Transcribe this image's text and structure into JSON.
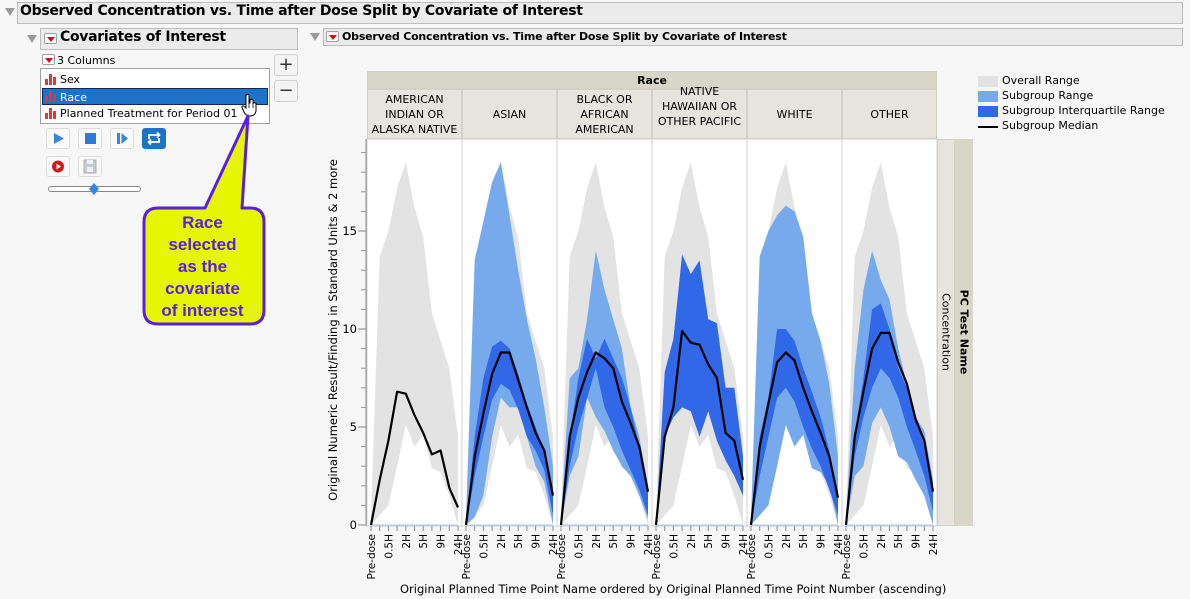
{
  "window": {
    "title": "Observed Concentration vs. Time after Dose Split by Covariate of Interest"
  },
  "covariates_panel": {
    "title": "Covariates of Interest",
    "columns_label": "3 Columns",
    "items": [
      {
        "label": "Sex",
        "selected": false
      },
      {
        "label": "Race",
        "selected": true
      },
      {
        "label": "Planned Treatment for Period 01",
        "selected": false
      }
    ],
    "add_button": "+",
    "remove_button": "−",
    "controls": [
      "play-icon",
      "stop-icon",
      "step-forward-icon",
      "loop-icon",
      "record-icon",
      "save-icon"
    ],
    "animation_speed": 0.5
  },
  "callout": {
    "text_lines": [
      "Race",
      "selected",
      "as the",
      "covariate",
      "of interest"
    ],
    "fill_color": "#e8f500",
    "border_color": "#5a1ee0"
  },
  "plot_outline": {
    "title": "Observed Concentration vs. Time after Dose Split by Covariate of Interest"
  },
  "chart_data": {
    "type": "area",
    "title": "Observed Concentration vs. Time after Dose Split by Covariate of Interest",
    "group_header": "Race",
    "panels": [
      {
        "label_lines": [
          "AMERICAN",
          "INDIAN OR",
          "ALASKA NATIVE"
        ]
      },
      {
        "label_lines": [
          "ASIAN"
        ]
      },
      {
        "label_lines": [
          "BLACK OR",
          "AFRICAN",
          "AMERICAN"
        ]
      },
      {
        "label_lines": [
          "NATIVE",
          "HAWAIIAN OR",
          "OTHER PACIFIC ..."
        ]
      },
      {
        "label_lines": [
          "WHITE"
        ]
      },
      {
        "label_lines": [
          "OTHER"
        ]
      }
    ],
    "row_strip": {
      "title": "PC Test Name",
      "value": "Concentration"
    },
    "xlabel": "Original Planned Time Point Name ordered by Original Planned Time Point Number (ascending)",
    "ylabel": "Original Numeric Result/Finding in Standard Units & 2 more",
    "x_ticks_count": 11,
    "x_tick_labels": [
      {
        "index": 0,
        "label": "Pre-dose"
      },
      {
        "index": 2,
        "label": "0.5H"
      },
      {
        "index": 4,
        "label": "2H"
      },
      {
        "index": 6,
        "label": "5H"
      },
      {
        "index": 8,
        "label": "9H"
      },
      {
        "index": 10,
        "label": "24H"
      }
    ],
    "y_ticks": [
      0,
      5,
      10,
      15
    ],
    "y_minor_step": 1,
    "ylim": [
      0,
      19.7
    ],
    "legend": {
      "position": "top-right",
      "items": [
        {
          "label": "Overall Range",
          "color": "#e3e3e3",
          "kind": "area"
        },
        {
          "label": "Subgroup Range",
          "color": "#76aaed",
          "kind": "area"
        },
        {
          "label": "Subgroup Interquartile Range",
          "color": "#3068e8",
          "kind": "area"
        },
        {
          "label": "Subgroup Median",
          "color": "#000000",
          "kind": "line"
        }
      ]
    },
    "overall_range": {
      "max": [
        0.5,
        13.7,
        15.0,
        17.2,
        18.5,
        16.2,
        14.7,
        10.8,
        9.4,
        8.0,
        4.5
      ],
      "min": [
        0,
        0.5,
        1.0,
        3.0,
        5.1,
        4.0,
        4.6,
        2.9,
        2.7,
        1.5,
        0
      ]
    },
    "series": [
      {
        "name": "AMERICAN INDIAN OR ALASKA NATIVE",
        "range_max": null,
        "range_min": null,
        "iqr_max": null,
        "iqr_min": null,
        "median": [
          0,
          2.3,
          4.3,
          6.8,
          6.7,
          5.6,
          4.7,
          3.6,
          3.8,
          1.9,
          0.9
        ]
      },
      {
        "name": "ASIAN",
        "range_max": [
          0.3,
          13.5,
          15.5,
          17.5,
          18.5,
          15.8,
          13.0,
          10.5,
          8.5,
          6.0,
          3.0
        ],
        "range_min": [
          0,
          0.4,
          1.5,
          4.5,
          6.5,
          6.0,
          6.0,
          4.5,
          3.0,
          2.2,
          0
        ],
        "iqr_max": [
          0,
          4.5,
          7.5,
          9.1,
          9.4,
          9.0,
          7.7,
          6.2,
          5.0,
          3.8,
          1.6
        ],
        "iqr_min": [
          0,
          2.5,
          4.5,
          6.4,
          7.2,
          6.9,
          5.9,
          4.5,
          3.8,
          2.8,
          0.5
        ],
        "median": [
          0,
          3.5,
          5.7,
          7.7,
          8.8,
          8.8,
          7.4,
          6.0,
          4.7,
          3.8,
          1.5
        ]
      },
      {
        "name": "BLACK OR AFRICAN AMERICAN",
        "range_max": [
          0.3,
          7.5,
          8.0,
          10.5,
          14.0,
          12.0,
          10.5,
          9.0,
          6.0,
          4.5,
          2.0
        ],
        "range_min": [
          0,
          2.5,
          3.5,
          6.5,
          5.5,
          4.8,
          3.8,
          3.0,
          2.5,
          1.5,
          0.3
        ],
        "iqr_max": [
          0,
          4.5,
          7.5,
          9.5,
          8.5,
          9.5,
          8.5,
          7.5,
          6.0,
          4.0,
          1.8
        ],
        "iqr_min": [
          0,
          3.0,
          5.0,
          6.5,
          8.0,
          6.0,
          5.0,
          3.8,
          2.8,
          1.8,
          0.5
        ],
        "median": [
          0,
          4.5,
          6.5,
          7.8,
          8.8,
          8.5,
          8.0,
          6.3,
          5.2,
          4.0,
          1.7
        ]
      },
      {
        "name": "NATIVE HAWAIIAN OR OTHER PACIFIC ...",
        "range_max": null,
        "range_min": null,
        "iqr_max": [
          0,
          7.8,
          9.5,
          13.8,
          12.8,
          13.5,
          10.5,
          10.3,
          7.0,
          7.0,
          3.5
        ],
        "iqr_min": [
          0,
          4.5,
          5.5,
          6.0,
          5.8,
          4.5,
          5.8,
          4.3,
          3.3,
          2.5,
          1.5
        ],
        "median": [
          0,
          4.5,
          6.0,
          9.9,
          9.3,
          9.2,
          8.2,
          7.5,
          4.7,
          4.3,
          2.3
        ]
      },
      {
        "name": "WHITE",
        "range_max": [
          0.3,
          13.7,
          15.0,
          15.8,
          16.3,
          16.0,
          14.7,
          10.8,
          9.4,
          7.2,
          3.5
        ],
        "range_min": [
          0,
          0.5,
          1.0,
          3.0,
          5.1,
          4.0,
          4.6,
          2.9,
          2.7,
          2.0,
          0
        ],
        "iqr_max": [
          0,
          4.5,
          6.5,
          10.0,
          10.0,
          9.4,
          8.0,
          6.8,
          5.5,
          3.8,
          1.5
        ],
        "iqr_min": [
          0,
          2.5,
          4.5,
          6.5,
          7.0,
          6.3,
          5.0,
          3.9,
          3.0,
          1.8,
          0.5
        ],
        "median": [
          0,
          4.0,
          6.2,
          8.3,
          8.8,
          8.4,
          7.0,
          5.8,
          4.7,
          3.5,
          1.4
        ]
      },
      {
        "name": "OTHER",
        "range_max": [
          0.3,
          8.0,
          12.0,
          14.0,
          12.5,
          11.5,
          9.0,
          7.2,
          5.5,
          4.8,
          2.3
        ],
        "range_min": [
          0,
          2.5,
          3.0,
          5.2,
          6.0,
          5.0,
          3.5,
          3.2,
          2.3,
          1.5,
          0
        ],
        "iqr_max": [
          0,
          4.5,
          7.5,
          11.0,
          11.3,
          10.0,
          8.0,
          7.0,
          5.5,
          4.0,
          1.8
        ],
        "iqr_min": [
          0,
          3.5,
          5.5,
          7.0,
          8.0,
          7.5,
          6.5,
          5.0,
          3.8,
          2.5,
          0.7
        ],
        "median": [
          0,
          4.5,
          6.8,
          9.0,
          9.8,
          9.8,
          8.3,
          7.2,
          5.4,
          4.3,
          1.7
        ]
      }
    ]
  }
}
